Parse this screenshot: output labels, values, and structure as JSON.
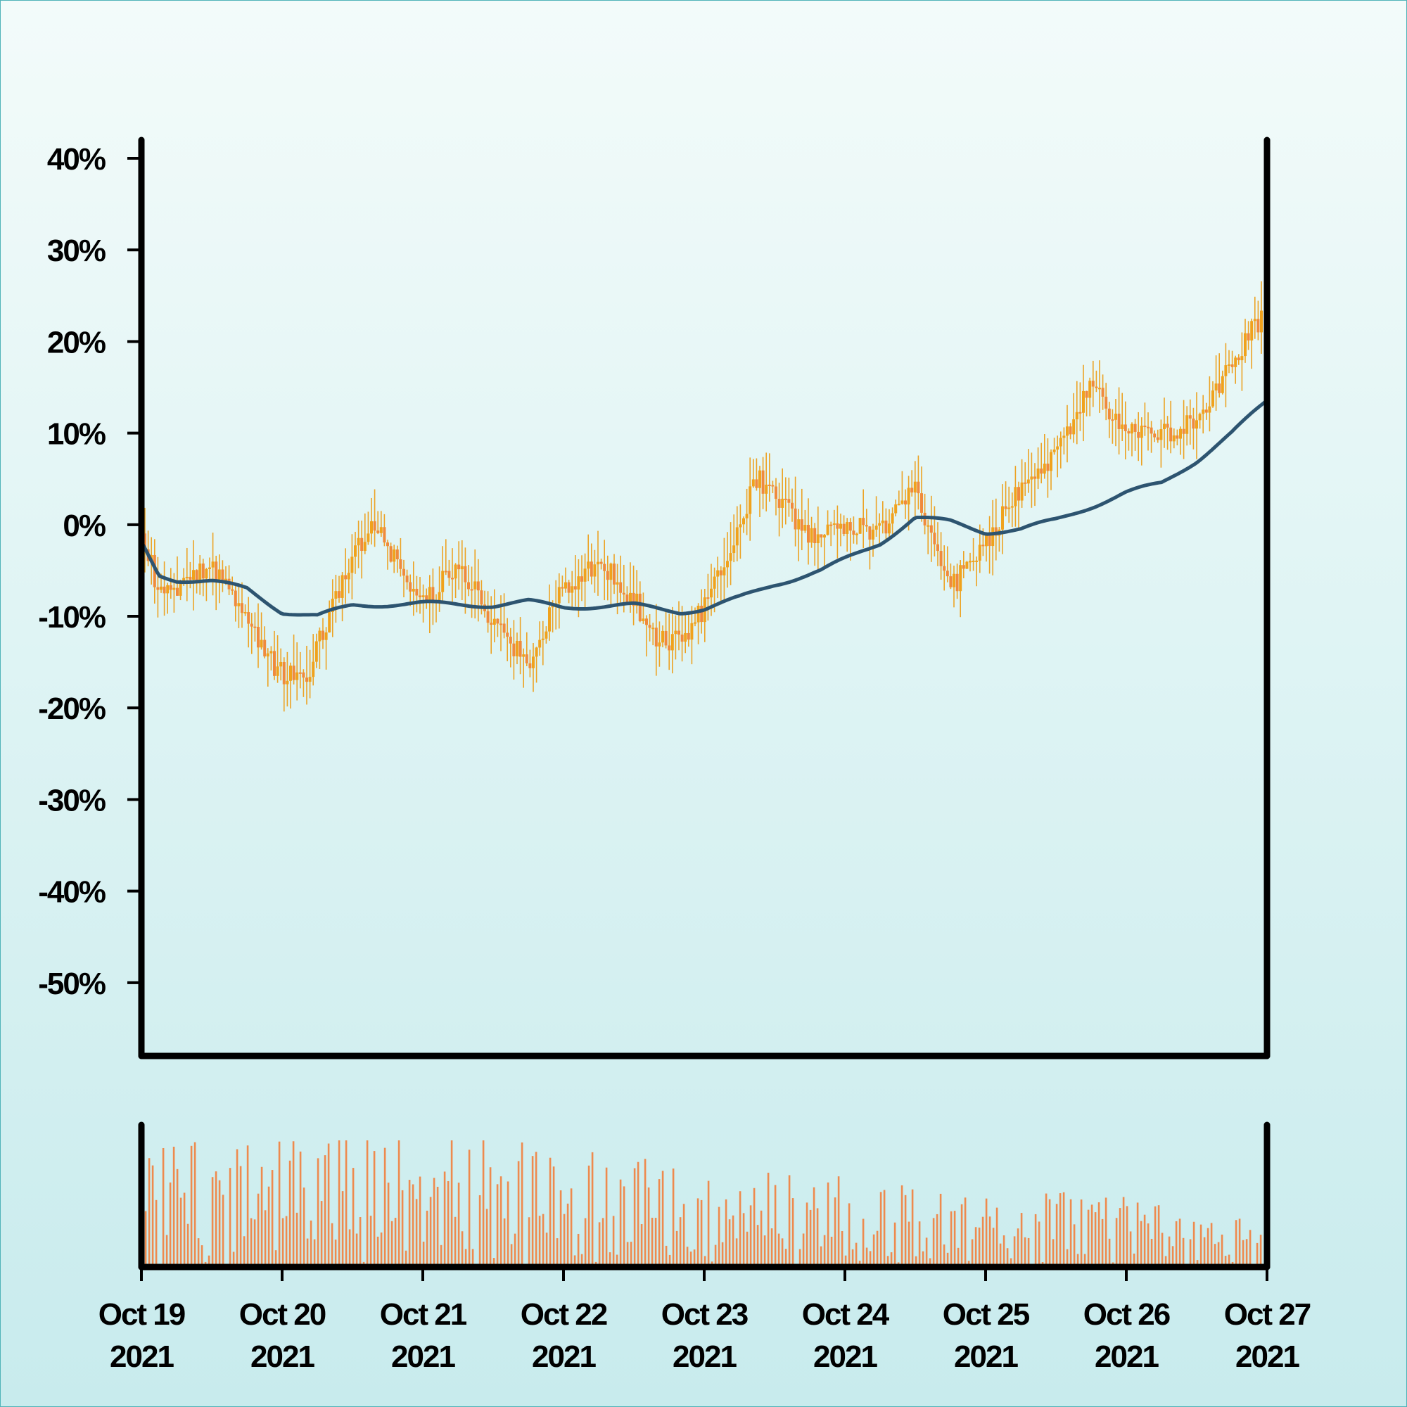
{
  "chart_data": {
    "type": "candlestick",
    "title": "",
    "xlabel": "",
    "ylabel": "",
    "y_unit": "%",
    "ylim": [
      -58,
      42
    ],
    "yticks": [
      40,
      30,
      20,
      10,
      0,
      -10,
      -20,
      -30,
      -40,
      -50
    ],
    "ytick_labels": [
      "40%",
      "30%",
      "20%",
      "10%",
      "0%",
      "-10%",
      "-20%",
      "-30%",
      "-40%",
      "-50%"
    ],
    "x_start": "2021-10-19",
    "x_end": "2021-10-27",
    "xtick_dates": [
      "2021-10-19",
      "2021-10-20",
      "2021-10-21",
      "2021-10-22",
      "2021-10-23",
      "2021-10-24",
      "2021-10-25",
      "2021-10-26",
      "2021-10-27"
    ],
    "xticks": [
      {
        "line1": "Oct 19",
        "line2": "2021"
      },
      {
        "line1": "Oct 20",
        "line2": "2021"
      },
      {
        "line1": "Oct 21",
        "line2": "2021"
      },
      {
        "line1": "Oct 22",
        "line2": "2021"
      },
      {
        "line1": "Oct 23",
        "line2": "2021"
      },
      {
        "line1": "Oct 24",
        "line2": "2021"
      },
      {
        "line1": "Oct 25",
        "line2": "2021"
      },
      {
        "line1": "Oct 26",
        "line2": "2021"
      },
      {
        "line1": "Oct 27",
        "line2": "2021"
      }
    ],
    "price_path": [
      {
        "t": "2021-10-19T00:00",
        "v": 0
      },
      {
        "t": "2021-10-19T03:00",
        "v": -8
      },
      {
        "t": "2021-10-19T09:00",
        "v": -6
      },
      {
        "t": "2021-10-19T12:00",
        "v": -4
      },
      {
        "t": "2021-10-19T18:00",
        "v": -10
      },
      {
        "t": "2021-10-19T23:00",
        "v": -16
      },
      {
        "t": "2021-10-20T04:00",
        "v": -17
      },
      {
        "t": "2021-10-20T12:00",
        "v": -3
      },
      {
        "t": "2021-10-20T16:00",
        "v": 0
      },
      {
        "t": "2021-10-21T00:00",
        "v": -9
      },
      {
        "t": "2021-10-21T06:00",
        "v": -4
      },
      {
        "t": "2021-10-21T12:00",
        "v": -11
      },
      {
        "t": "2021-10-21T18:00",
        "v": -15
      },
      {
        "t": "2021-10-22T00:00",
        "v": -7
      },
      {
        "t": "2021-10-22T06:00",
        "v": -4
      },
      {
        "t": "2021-10-22T12:00",
        "v": -8
      },
      {
        "t": "2021-10-22T16:00",
        "v": -13
      },
      {
        "t": "2021-10-22T21:00",
        "v": -12
      },
      {
        "t": "2021-10-23T00:00",
        "v": -9
      },
      {
        "t": "2021-10-23T09:00",
        "v": 5
      },
      {
        "t": "2021-10-23T18:00",
        "v": -1
      },
      {
        "t": "2021-10-24T00:00",
        "v": 0
      },
      {
        "t": "2021-10-24T06:00",
        "v": -1
      },
      {
        "t": "2021-10-24T12:00",
        "v": 4
      },
      {
        "t": "2021-10-24T18:00",
        "v": -7
      },
      {
        "t": "2021-10-25T00:00",
        "v": -2
      },
      {
        "t": "2021-10-25T06:00",
        "v": 4
      },
      {
        "t": "2021-10-25T12:00",
        "v": 8
      },
      {
        "t": "2021-10-25T18:00",
        "v": 15
      },
      {
        "t": "2021-10-26T00:00",
        "v": 10
      },
      {
        "t": "2021-10-26T06:00",
        "v": 10
      },
      {
        "t": "2021-10-26T12:00",
        "v": 11
      },
      {
        "t": "2021-10-26T16:00",
        "v": 15
      },
      {
        "t": "2021-10-26T20:00",
        "v": 20
      },
      {
        "t": "2021-10-27T00:00",
        "v": 23
      }
    ],
    "moving_average": [
      {
        "t": "2021-10-19T00:00",
        "v": -2
      },
      {
        "t": "2021-10-19T03:00",
        "v": -5.5
      },
      {
        "t": "2021-10-19T06:00",
        "v": -6
      },
      {
        "t": "2021-10-19T12:00",
        "v": -6.2
      },
      {
        "t": "2021-10-19T18:00",
        "v": -7
      },
      {
        "t": "2021-10-20T00:00",
        "v": -9.5
      },
      {
        "t": "2021-10-20T06:00",
        "v": -10
      },
      {
        "t": "2021-10-20T12:00",
        "v": -8.8
      },
      {
        "t": "2021-10-21T00:00",
        "v": -8.6
      },
      {
        "t": "2021-10-21T12:00",
        "v": -8.8
      },
      {
        "t": "2021-10-21T18:00",
        "v": -8.4
      },
      {
        "t": "2021-10-22T00:00",
        "v": -9.0
      },
      {
        "t": "2021-10-22T12:00",
        "v": -8.8
      },
      {
        "t": "2021-10-22T20:00",
        "v": -9.5
      },
      {
        "t": "2021-10-23T00:00",
        "v": -9.2
      },
      {
        "t": "2021-10-23T06:00",
        "v": -8
      },
      {
        "t": "2021-10-23T12:00",
        "v": -6.5
      },
      {
        "t": "2021-10-23T20:00",
        "v": -5
      },
      {
        "t": "2021-10-24T06:00",
        "v": -2
      },
      {
        "t": "2021-10-24T12:00",
        "v": 0.8
      },
      {
        "t": "2021-10-24T18:00",
        "v": 0.3
      },
      {
        "t": "2021-10-25T00:00",
        "v": -0.8
      },
      {
        "t": "2021-10-25T06:00",
        "v": -0.5
      },
      {
        "t": "2021-10-25T12:00",
        "v": 0.5
      },
      {
        "t": "2021-10-26T00:00",
        "v": 3.5
      },
      {
        "t": "2021-10-26T06:00",
        "v": 4.5
      },
      {
        "t": "2021-10-26T12:00",
        "v": 7
      },
      {
        "t": "2021-10-26T18:00",
        "v": 10
      },
      {
        "t": "2021-10-27T00:00",
        "v": 13.5
      }
    ],
    "volume_profile": [
      {
        "t": "2021-10-19T00:00",
        "v": 0.75
      },
      {
        "t": "2021-10-20T00:00",
        "v": 0.75
      },
      {
        "t": "2021-10-21T00:00",
        "v": 0.8
      },
      {
        "t": "2021-10-22T00:00",
        "v": 0.7
      },
      {
        "t": "2021-10-23T00:00",
        "v": 0.6
      },
      {
        "t": "2021-10-24T00:00",
        "v": 0.55
      },
      {
        "t": "2021-10-25T00:00",
        "v": 0.45
      },
      {
        "t": "2021-10-26T00:00",
        "v": 0.45
      },
      {
        "t": "2021-10-27T00:00",
        "v": 0.25
      }
    ],
    "colors": {
      "candle_up": "#f0a21c",
      "candle_down": "#f08a3c",
      "wick": "#eca325",
      "moving_average": "#2d5470",
      "volume": "#ee8a4e",
      "axis": "#000000"
    }
  }
}
